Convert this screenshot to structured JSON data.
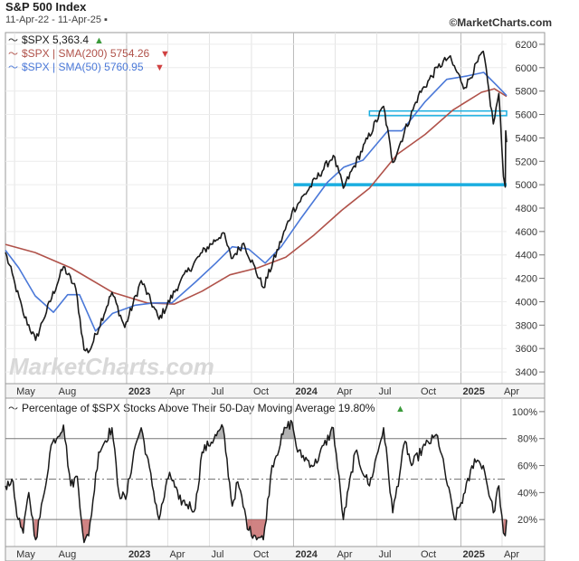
{
  "header": {
    "title": "S&P 500 Index",
    "date_range": "11-Apr-22 - 11-Apr-25 ▪",
    "credit": "©MarketCharts.com",
    "watermark": "MarketCharts.com"
  },
  "colors": {
    "price": "#1a1a1a",
    "sma200": "#b0524a",
    "sma50": "#4a78d8",
    "support": "#1aaee0",
    "oversold_fill": "#c05a5a",
    "overbought_fill": "#9a9a9a",
    "up_arrow": "#3a9a3a",
    "down_arrow": "#d04040"
  },
  "legend": {
    "price": "$SPX 5,363.4",
    "sma200": "$SPX | SMA(200) 5754.26",
    "sma50": "$SPX | SMA(50) 5760.95"
  },
  "breadth_title": "Percentage of $SPX Stocks Above Their 50-Day Moving Average 19.80%",
  "chart_data": [
    {
      "type": "line",
      "title": "S&P 500 Index",
      "y_scale": "linear",
      "ylim": [
        3300,
        6300
      ],
      "y_ticks": [
        "3400",
        "3600",
        "3800",
        "4000",
        "4200",
        "4400",
        "4600",
        "4800",
        "5000",
        "5200",
        "5400",
        "5600",
        "5800",
        "6000",
        "6200"
      ],
      "x_ticks": [
        "May",
        "Aug",
        "2023",
        "Apr",
        "Jul",
        "Oct",
        "2024",
        "Apr",
        "Jul",
        "Oct",
        "2025",
        "Apr"
      ],
      "x_tick_dates": [
        "2022-05-01",
        "2022-08-01",
        "2023-01-01",
        "2023-04-01",
        "2023-07-01",
        "2023-10-01",
        "2024-01-01",
        "2024-04-01",
        "2024-07-01",
        "2024-10-01",
        "2025-01-01",
        "2025-04-01"
      ],
      "x_range": [
        "2022-04-11",
        "2025-04-11"
      ],
      "grid": true,
      "legend_position": "top-left",
      "series": [
        {
          "name": "$SPX 5,363.4",
          "points": [
            [
              "2022-04-11",
              4420
            ],
            [
              "2022-05-02",
              4150
            ],
            [
              "2022-05-20",
              3900
            ],
            [
              "2022-06-16",
              3670
            ],
            [
              "2022-07-01",
              3830
            ],
            [
              "2022-08-16",
              4300
            ],
            [
              "2022-09-12",
              4110
            ],
            [
              "2022-09-30",
              3590
            ],
            [
              "2022-10-12",
              3580
            ],
            [
              "2022-11-30",
              4080
            ],
            [
              "2022-12-28",
              3780
            ],
            [
              "2023-02-02",
              4180
            ],
            [
              "2023-03-13",
              3850
            ],
            [
              "2023-04-28",
              4170
            ],
            [
              "2023-06-15",
              4420
            ],
            [
              "2023-07-31",
              4590
            ],
            [
              "2023-08-18",
              4370
            ],
            [
              "2023-09-14",
              4500
            ],
            [
              "2023-10-27",
              4120
            ],
            [
              "2023-12-29",
              4770
            ],
            [
              "2024-03-28",
              5250
            ],
            [
              "2024-04-19",
              4970
            ],
            [
              "2024-07-16",
              5670
            ],
            [
              "2024-08-05",
              5190
            ],
            [
              "2024-09-30",
              5760
            ],
            [
              "2024-11-11",
              6000
            ],
            [
              "2024-12-06",
              6090
            ],
            [
              "2025-01-10",
              5830
            ],
            [
              "2025-02-19",
              6140
            ],
            [
              "2025-03-13",
              5520
            ],
            [
              "2025-03-25",
              5780
            ],
            [
              "2025-04-04",
              5070
            ],
            [
              "2025-04-08",
              4980
            ],
            [
              "2025-04-09",
              5460
            ],
            [
              "2025-04-11",
              5363
            ]
          ]
        },
        {
          "name": "$SPX | SMA(200) 5754.26",
          "points": [
            [
              "2022-04-11",
              4490
            ],
            [
              "2022-06-15",
              4420
            ],
            [
              "2022-09-01",
              4290
            ],
            [
              "2022-12-01",
              4080
            ],
            [
              "2023-02-15",
              3990
            ],
            [
              "2023-04-15",
              3980
            ],
            [
              "2023-06-15",
              4090
            ],
            [
              "2023-08-15",
              4230
            ],
            [
              "2023-10-15",
              4290
            ],
            [
              "2023-12-15",
              4380
            ],
            [
              "2024-02-15",
              4570
            ],
            [
              "2024-04-15",
              4780
            ],
            [
              "2024-06-15",
              4970
            ],
            [
              "2024-08-15",
              5260
            ],
            [
              "2024-10-15",
              5430
            ],
            [
              "2024-12-15",
              5640
            ],
            [
              "2025-02-15",
              5790
            ],
            [
              "2025-03-15",
              5820
            ],
            [
              "2025-04-11",
              5754
            ]
          ]
        },
        {
          "name": "$SPX | SMA(50) 5760.95",
          "points": [
            [
              "2022-04-11",
              4440
            ],
            [
              "2022-05-10",
              4290
            ],
            [
              "2022-06-15",
              4050
            ],
            [
              "2022-07-25",
              3910
            ],
            [
              "2022-08-25",
              4060
            ],
            [
              "2022-09-20",
              4060
            ],
            [
              "2022-10-25",
              3750
            ],
            [
              "2022-12-01",
              3900
            ],
            [
              "2023-01-20",
              3970
            ],
            [
              "2023-03-01",
              3990
            ],
            [
              "2023-04-10",
              3990
            ],
            [
              "2023-06-01",
              4170
            ],
            [
              "2023-07-15",
              4330
            ],
            [
              "2023-08-20",
              4470
            ],
            [
              "2023-09-25",
              4450
            ],
            [
              "2023-10-31",
              4330
            ],
            [
              "2023-12-05",
              4470
            ],
            [
              "2024-01-15",
              4700
            ],
            [
              "2024-03-15",
              5020
            ],
            [
              "2024-04-20",
              5150
            ],
            [
              "2024-06-01",
              5210
            ],
            [
              "2024-07-25",
              5460
            ],
            [
              "2024-08-25",
              5460
            ],
            [
              "2024-10-15",
              5710
            ],
            [
              "2024-12-01",
              5900
            ],
            [
              "2025-01-15",
              5930
            ],
            [
              "2025-02-20",
              5960
            ],
            [
              "2025-03-20",
              5850
            ],
            [
              "2025-04-11",
              5761
            ]
          ]
        }
      ],
      "annotations": [
        {
          "type": "support_line",
          "label": "",
          "y": 5000,
          "from": "2024-01-01",
          "to": "2025-04-11"
        },
        {
          "type": "resistance_band",
          "label": "",
          "y": [
            5590,
            5630
          ],
          "from": "2024-06-15",
          "to": "2025-04-11"
        }
      ]
    },
    {
      "type": "line",
      "title": "Percentage of $SPX Stocks Above Their 50-Day Moving Average 19.80%",
      "ylim": [
        0,
        110
      ],
      "y_ticks": [
        "20%",
        "40%",
        "60%",
        "80%",
        "100%"
      ],
      "x_ticks": [
        "May",
        "Aug",
        "2023",
        "Apr",
        "Jul",
        "Oct",
        "2024",
        "Apr",
        "Jul",
        "Oct",
        "2025",
        "Apr"
      ],
      "reference_lines": [
        20,
        50,
        80
      ],
      "series": [
        {
          "name": "Percentage of $SPX Stocks Above Their 50-Day Moving Average",
          "points": [
            [
              "2022-04-11",
              45
            ],
            [
              "2022-04-25",
              50
            ],
            [
              "2022-05-09",
              20
            ],
            [
              "2022-05-20",
              10
            ],
            [
              "2022-06-01",
              40
            ],
            [
              "2022-06-16",
              5
            ],
            [
              "2022-07-05",
              40
            ],
            [
              "2022-07-20",
              75
            ],
            [
              "2022-08-16",
              90
            ],
            [
              "2022-09-01",
              45
            ],
            [
              "2022-09-15",
              52
            ],
            [
              "2022-09-30",
              3
            ],
            [
              "2022-10-10",
              8
            ],
            [
              "2022-11-01",
              70
            ],
            [
              "2022-11-30",
              88
            ],
            [
              "2022-12-15",
              40
            ],
            [
              "2022-12-30",
              35
            ],
            [
              "2023-01-20",
              75
            ],
            [
              "2023-02-02",
              88
            ],
            [
              "2023-03-13",
              20
            ],
            [
              "2023-04-05",
              55
            ],
            [
              "2023-04-25",
              35
            ],
            [
              "2023-05-31",
              28
            ],
            [
              "2023-06-15",
              70
            ],
            [
              "2023-07-31",
              88
            ],
            [
              "2023-08-20",
              30
            ],
            [
              "2023-09-01",
              48
            ],
            [
              "2023-09-25",
              12
            ],
            [
              "2023-10-27",
              5
            ],
            [
              "2023-11-15",
              60
            ],
            [
              "2023-12-15",
              88
            ],
            [
              "2023-12-29",
              92
            ],
            [
              "2024-01-10",
              70
            ],
            [
              "2024-02-15",
              60
            ],
            [
              "2024-03-28",
              88
            ],
            [
              "2024-04-19",
              20
            ],
            [
              "2024-05-15",
              70
            ],
            [
              "2024-06-15",
              45
            ],
            [
              "2024-07-16",
              88
            ],
            [
              "2024-08-05",
              25
            ],
            [
              "2024-09-01",
              78
            ],
            [
              "2024-09-15",
              60
            ],
            [
              "2024-10-15",
              75
            ],
            [
              "2024-11-11",
              82
            ],
            [
              "2024-12-18",
              20
            ],
            [
              "2025-01-10",
              40
            ],
            [
              "2025-01-31",
              65
            ],
            [
              "2025-02-19",
              60
            ],
            [
              "2025-03-13",
              25
            ],
            [
              "2025-03-25",
              45
            ],
            [
              "2025-04-04",
              10
            ],
            [
              "2025-04-08",
              8
            ],
            [
              "2025-04-11",
              19.8
            ]
          ]
        }
      ]
    }
  ]
}
